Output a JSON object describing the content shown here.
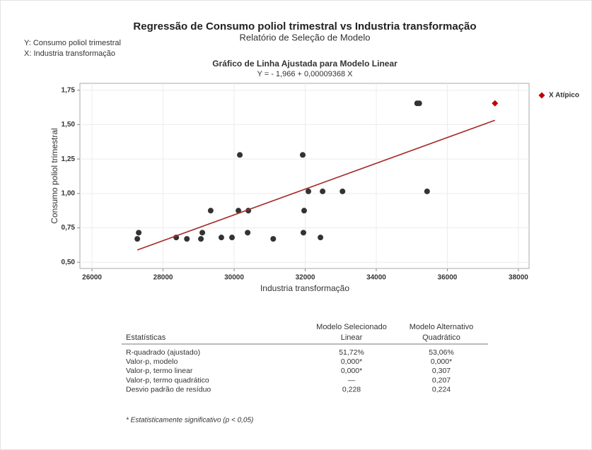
{
  "header": {
    "title": "Regressão de Consumo poliol trimestral vs Industria transformação",
    "subtitle": "Relatório de Seleção de Modelo",
    "y_label": "Y: Consumo poliol trimestral",
    "x_label": "X: Industria transformação"
  },
  "chart_data": {
    "type": "scatter",
    "title": "Gráfico de Linha Ajustada para Modelo Linear",
    "subtitle": "Y = - 1,966 + 0,00009368 X",
    "x_label": "Industria transformação",
    "y_label": "Consumo poliol trimestral",
    "xlim": [
      25660,
      38300
    ],
    "ylim": [
      0.455,
      1.8
    ],
    "xticks": [
      26000,
      28000,
      30000,
      32000,
      34000,
      36000,
      38000
    ],
    "yticks": [
      {
        "value": 0.5,
        "label": "0,50"
      },
      {
        "value": 0.75,
        "label": "0,75"
      },
      {
        "value": 1.0,
        "label": "1,00"
      },
      {
        "value": 1.25,
        "label": "1,25"
      },
      {
        "value": 1.5,
        "label": "1,50"
      },
      {
        "value": 1.75,
        "label": "1,75"
      }
    ],
    "grid": true,
    "points": {
      "color": "#333333",
      "x": [
        27275,
        27315,
        28370,
        28670,
        29065,
        29105,
        29340,
        29640,
        29940,
        30120,
        30160,
        30380,
        30400,
        31100,
        31930,
        31950,
        31970,
        32090,
        32430,
        32490,
        33050,
        35150,
        35210,
        35430
      ],
      "values": [
        0.67,
        0.715,
        0.68,
        0.67,
        0.67,
        0.715,
        0.875,
        0.68,
        0.68,
        0.875,
        1.28,
        0.715,
        0.875,
        0.67,
        1.28,
        0.715,
        0.875,
        1.015,
        0.68,
        1.015,
        1.015,
        1.655,
        1.655,
        1.015
      ]
    },
    "fit": {
      "color": "#a52a2a",
      "x": [
        27275,
        37340
      ],
      "values": [
        0.589,
        1.532
      ]
    },
    "outliers": {
      "name": "X Atípico",
      "color": "#c00000",
      "x": [
        37340
      ],
      "values": [
        1.655
      ]
    },
    "legend": "right"
  },
  "table": {
    "header": [
      [
        "Estatísticas"
      ],
      [
        "Modelo Selecionado",
        "Linear"
      ],
      [
        "Modelo Alternativo",
        "Quadrático"
      ]
    ],
    "rows": [
      [
        "R-quadrado (ajustado)",
        "51,72%",
        "53,06%"
      ],
      [
        "Valor-p, modelo",
        "0,000*",
        "0,000*"
      ],
      [
        "Valor-p, termo linear",
        "0,000*",
        "0,307"
      ],
      [
        "Valor-p, termo quadrático",
        "—",
        "0,207"
      ],
      [
        "Desvio padrão de resíduo",
        "0,228",
        "0,224"
      ]
    ],
    "footnote": "* Estatisticamente significativo (p < 0,05)"
  }
}
